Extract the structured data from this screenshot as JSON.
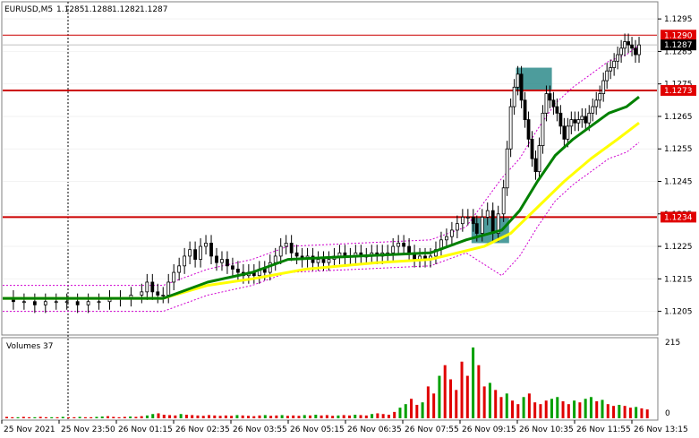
{
  "header": {
    "symbol_label": "EURUSD,M5",
    "ohlc": [
      "1.1285",
      "1.1288",
      "1.1282",
      "1.1287"
    ]
  },
  "volume_panel": {
    "title": "Volumes 37",
    "scale_max": "215",
    "scale_min": "0"
  },
  "colors": {
    "background": "#ffffff",
    "candle": "#000000",
    "ma_fast": "#008000",
    "ma_slow": "#ffff00",
    "envelope": "#d000d0",
    "support_resistance": "#cc0000",
    "price_tag": "#e00000",
    "bid_tag": "#ffffff",
    "zone": "#2e8b8b",
    "volume_up": "#00a000",
    "volume_down": "#e00000"
  },
  "chart_data": {
    "type": "candlestick",
    "instrument": "EURUSD",
    "timeframe": "M5",
    "y_axis_ticks": [
      "1.1295",
      "1.1285",
      "1.1275",
      "1.1265",
      "1.1255",
      "1.1245",
      "1.1235",
      "1.1225",
      "1.1215",
      "1.1205"
    ],
    "ylim": [
      1.1198,
      1.13
    ],
    "x_axis_ticks": [
      "25 Nov 2021",
      "25 Nov 23:50",
      "26 Nov 01:15",
      "26 Nov 02:35",
      "26 Nov 03:55",
      "26 Nov 05:15",
      "26 Nov 06:35",
      "26 Nov 07:55",
      "26 Nov 09:15",
      "26 Nov 10:35",
      "26 Nov 11:55",
      "26 Nov 13:15"
    ],
    "horizontal_levels": [
      {
        "value": 1.1273,
        "label": "1.1273",
        "style": "red"
      },
      {
        "value": 1.1234,
        "label": "1.1234",
        "style": "red"
      },
      {
        "value": 1.129,
        "label": "1.1290",
        "style": "thin-red"
      }
    ],
    "current_bid": {
      "value": 1.1287,
      "label": "1.1287"
    },
    "price_path": [
      [
        0,
        1.1209
      ],
      [
        12,
        1.1208
      ],
      [
        24,
        1.1208
      ],
      [
        36,
        1.1207
      ],
      [
        48,
        1.1208
      ],
      [
        60,
        1.1208
      ],
      [
        72,
        1.1208
      ],
      [
        84,
        1.1207
      ],
      [
        96,
        1.1208
      ],
      [
        108,
        1.1208
      ],
      [
        120,
        1.1209
      ],
      [
        132,
        1.1209
      ],
      [
        144,
        1.121
      ],
      [
        156,
        1.1211
      ],
      [
        162,
        1.1214
      ],
      [
        168,
        1.1211
      ],
      [
        174,
        1.121
      ],
      [
        180,
        1.121
      ],
      [
        186,
        1.1214
      ],
      [
        192,
        1.1217
      ],
      [
        198,
        1.1219
      ],
      [
        204,
        1.1222
      ],
      [
        210,
        1.1224
      ],
      [
        216,
        1.1221
      ],
      [
        222,
        1.1225
      ],
      [
        228,
        1.1226
      ],
      [
        234,
        1.1222
      ],
      [
        240,
        1.122
      ],
      [
        246,
        1.1221
      ],
      [
        252,
        1.1219
      ],
      [
        258,
        1.1218
      ],
      [
        264,
        1.1217
      ],
      [
        270,
        1.1216
      ],
      [
        276,
        1.1217
      ],
      [
        282,
        1.1216
      ],
      [
        288,
        1.1218
      ],
      [
        294,
        1.1217
      ],
      [
        300,
        1.122
      ],
      [
        306,
        1.1222
      ],
      [
        312,
        1.1225
      ],
      [
        318,
        1.1226
      ],
      [
        324,
        1.1223
      ],
      [
        330,
        1.1222
      ],
      [
        336,
        1.1221
      ],
      [
        342,
        1.1222
      ],
      [
        348,
        1.122
      ],
      [
        354,
        1.1221
      ],
      [
        360,
        1.122
      ],
      [
        366,
        1.1221
      ],
      [
        372,
        1.1222
      ],
      [
        378,
        1.1223
      ],
      [
        384,
        1.1222
      ],
      [
        390,
        1.1222
      ],
      [
        396,
        1.1223
      ],
      [
        402,
        1.1222
      ],
      [
        408,
        1.1222
      ],
      [
        414,
        1.1223
      ],
      [
        420,
        1.1222
      ],
      [
        426,
        1.1223
      ],
      [
        432,
        1.1223
      ],
      [
        438,
        1.1225
      ],
      [
        444,
        1.1226
      ],
      [
        450,
        1.1225
      ],
      [
        456,
        1.1223
      ],
      [
        462,
        1.1221
      ],
      [
        468,
        1.1222
      ],
      [
        474,
        1.1221
      ],
      [
        480,
        1.1222
      ],
      [
        486,
        1.1224
      ],
      [
        492,
        1.1227
      ],
      [
        498,
        1.1228
      ],
      [
        504,
        1.123
      ],
      [
        510,
        1.1232
      ],
      [
        516,
        1.1234
      ],
      [
        522,
        1.1234
      ],
      [
        528,
        1.1232
      ],
      [
        532,
        1.1229
      ],
      [
        538,
        1.1234
      ],
      [
        544,
        1.1236
      ],
      [
        550,
        1.1229
      ],
      [
        556,
        1.1235
      ],
      [
        562,
        1.1243
      ],
      [
        566,
        1.1255
      ],
      [
        570,
        1.1268
      ],
      [
        574,
        1.1274
      ],
      [
        578,
        1.1278
      ],
      [
        582,
        1.127
      ],
      [
        586,
        1.1264
      ],
      [
        590,
        1.1258
      ],
      [
        594,
        1.1252
      ],
      [
        598,
        1.1248
      ],
      [
        602,
        1.1256
      ],
      [
        606,
        1.1266
      ],
      [
        610,
        1.1272
      ],
      [
        614,
        1.127
      ],
      [
        618,
        1.1268
      ],
      [
        622,
        1.1266
      ],
      [
        626,
        1.1262
      ],
      [
        630,
        1.1258
      ],
      [
        634,
        1.1262
      ],
      [
        638,
        1.1264
      ],
      [
        642,
        1.1263
      ],
      [
        646,
        1.1264
      ],
      [
        650,
        1.1265
      ],
      [
        654,
        1.1263
      ],
      [
        658,
        1.1266
      ],
      [
        662,
        1.1268
      ],
      [
        666,
        1.127
      ],
      [
        670,
        1.1272
      ],
      [
        674,
        1.1276
      ],
      [
        678,
        1.1279
      ],
      [
        682,
        1.128
      ],
      [
        686,
        1.1282
      ],
      [
        690,
        1.1284
      ],
      [
        694,
        1.1286
      ],
      [
        698,
        1.1288
      ],
      [
        702,
        1.1287
      ],
      [
        706,
        1.1286
      ],
      [
        710,
        1.1284
      ],
      [
        714,
        1.1287
      ]
    ],
    "ma_fast_path": [
      [
        0,
        1.1209
      ],
      [
        180,
        1.1209
      ],
      [
        230,
        1.1214
      ],
      [
        280,
        1.1217
      ],
      [
        320,
        1.1221
      ],
      [
        400,
        1.1222
      ],
      [
        480,
        1.1223
      ],
      [
        520,
        1.1227
      ],
      [
        560,
        1.123
      ],
      [
        580,
        1.1236
      ],
      [
        600,
        1.1245
      ],
      [
        620,
        1.1253
      ],
      [
        640,
        1.1258
      ],
      [
        660,
        1.1262
      ],
      [
        680,
        1.1266
      ],
      [
        700,
        1.1268
      ],
      [
        714,
        1.1271
      ]
    ],
    "ma_slow_path": [
      [
        0,
        1.1209
      ],
      [
        180,
        1.1209
      ],
      [
        230,
        1.1213
      ],
      [
        280,
        1.1215
      ],
      [
        340,
        1.1218
      ],
      [
        420,
        1.122
      ],
      [
        480,
        1.1221
      ],
      [
        540,
        1.1225
      ],
      [
        570,
        1.1229
      ],
      [
        600,
        1.1237
      ],
      [
        630,
        1.1245
      ],
      [
        660,
        1.1252
      ],
      [
        690,
        1.1258
      ],
      [
        714,
        1.1263
      ]
    ],
    "volumes": [
      4,
      3,
      3,
      4,
      3,
      3,
      4,
      3,
      3,
      3,
      4,
      3,
      3,
      4,
      3,
      3,
      4,
      5,
      6,
      4,
      3,
      4,
      5,
      4,
      6,
      8,
      12,
      14,
      10,
      9,
      8,
      12,
      10,
      9,
      8,
      7,
      9,
      8,
      7,
      8,
      7,
      9,
      8,
      7,
      6,
      8,
      9,
      7,
      8,
      9,
      7,
      8,
      7,
      9,
      8,
      10,
      8,
      9,
      7,
      8,
      9,
      8,
      10,
      9,
      8,
      12,
      14,
      12,
      10,
      18,
      30,
      40,
      55,
      38,
      45,
      90,
      70,
      120,
      150,
      110,
      80,
      160,
      120,
      200,
      150,
      90,
      100,
      80,
      60,
      70,
      50,
      40,
      60,
      70,
      45,
      40,
      50,
      55,
      60,
      48,
      40,
      50,
      45,
      55,
      60,
      48,
      52,
      40,
      35,
      38,
      35,
      30,
      32,
      28,
      25
    ]
  }
}
